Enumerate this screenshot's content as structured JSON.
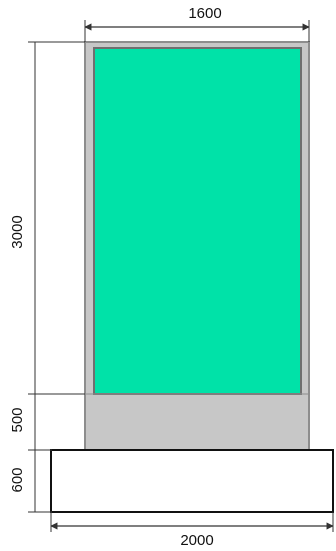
{
  "dimensions": {
    "top_width": "1600",
    "bottom_width": "2000",
    "panel_height": "3000",
    "base_height": "500",
    "foundation_height": "600"
  },
  "colors": {
    "frame": "#c7c7c7",
    "frame_border": "#8d8d8d",
    "panel": "#00e2a8",
    "panel_border": "#6f6f6f",
    "foundation_border": "#111111",
    "dimension_line": "#333333"
  }
}
